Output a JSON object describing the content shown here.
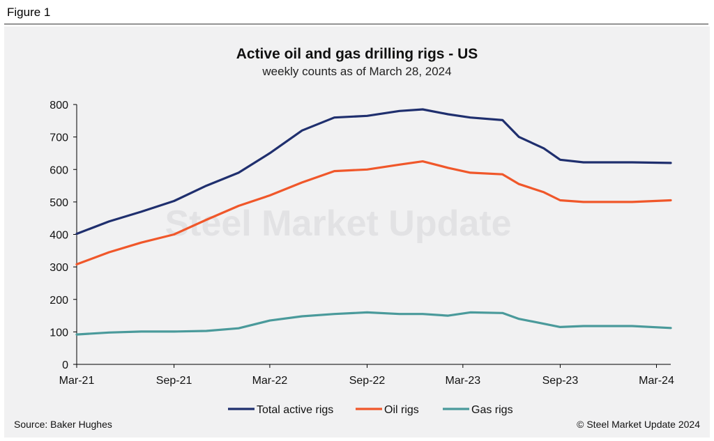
{
  "figure_label": "Figure 1",
  "source": "Source: Baker Hughes",
  "copyright": "© Steel Market Update 2024",
  "watermark": "Steel Market Update",
  "chart_data": {
    "type": "line",
    "title": "Active oil and gas drilling rigs - US",
    "subtitle": "weekly counts as of March 28, 2024",
    "xlabel": "",
    "ylabel": "",
    "ylim": [
      0,
      800
    ],
    "yticks": [
      0,
      100,
      200,
      300,
      400,
      500,
      600,
      700,
      800
    ],
    "xlim": [
      "2021-03-01",
      "2024-03-28"
    ],
    "xtick_labels": [
      "Mar-21",
      "Sep-21",
      "Mar-22",
      "Sep-22",
      "Mar-23",
      "Sep-23",
      "Mar-24"
    ],
    "xtick_dates": [
      "2021-03-01",
      "2021-09-01",
      "2022-03-01",
      "2022-09-01",
      "2023-03-01",
      "2023-09-01",
      "2024-03-01"
    ],
    "grid": false,
    "legend_position": "bottom",
    "x": [
      "2021-03-01",
      "2021-05-01",
      "2021-07-01",
      "2021-09-01",
      "2021-11-01",
      "2022-01-01",
      "2022-03-01",
      "2022-05-01",
      "2022-07-01",
      "2022-09-01",
      "2022-11-01",
      "2022-12-15",
      "2023-02-01",
      "2023-03-15",
      "2023-05-15",
      "2023-06-15",
      "2023-08-01",
      "2023-09-01",
      "2023-10-15",
      "2023-12-01",
      "2024-01-15",
      "2024-03-28"
    ],
    "series": [
      {
        "name": "Total active rigs",
        "color": "#1f2f6e",
        "values": [
          402,
          440,
          470,
          503,
          550,
          590,
          650,
          720,
          760,
          765,
          780,
          785,
          770,
          760,
          752,
          700,
          665,
          630,
          622,
          622,
          622,
          620
        ]
      },
      {
        "name": "Oil rigs",
        "color": "#f0572a",
        "values": [
          308,
          345,
          375,
          400,
          445,
          488,
          520,
          560,
          595,
          600,
          615,
          625,
          605,
          590,
          585,
          555,
          530,
          505,
          500,
          500,
          500,
          505
        ]
      },
      {
        "name": "Gas rigs",
        "color": "#4a9a9b",
        "values": [
          92,
          98,
          101,
          101,
          103,
          111,
          135,
          148,
          155,
          160,
          155,
          155,
          150,
          160,
          158,
          140,
          125,
          115,
          118,
          118,
          118,
          112
        ]
      }
    ]
  }
}
